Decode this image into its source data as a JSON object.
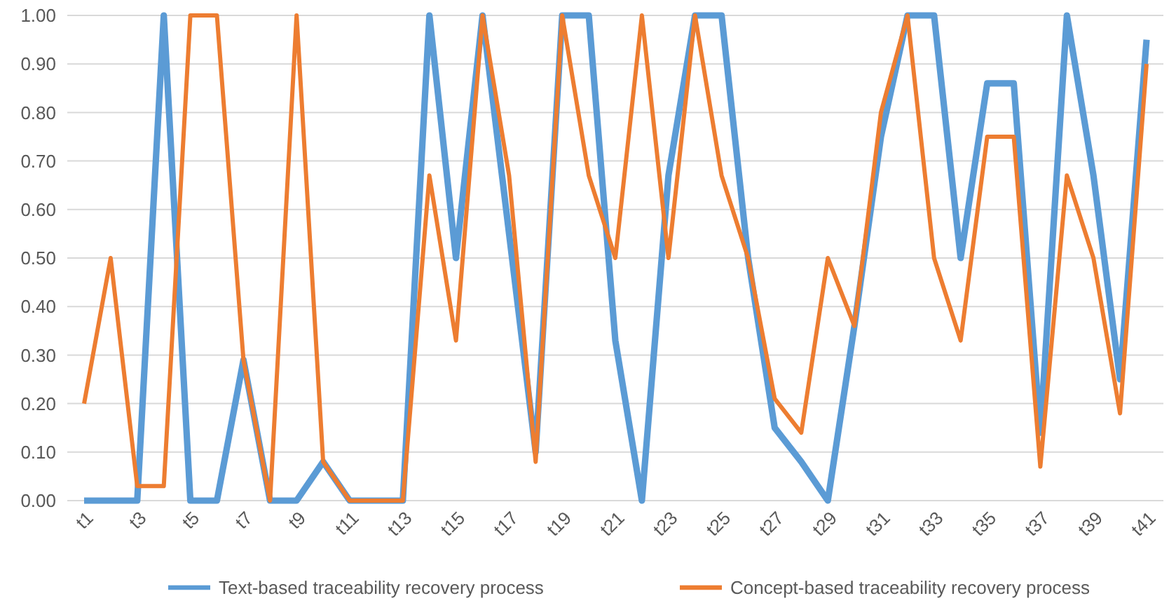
{
  "chart_data": {
    "type": "line",
    "categories": [
      "t1",
      null,
      "t3",
      null,
      "t5",
      null,
      "t7",
      null,
      "t9",
      null,
      "t11",
      null,
      "t13",
      null,
      "t15",
      null,
      "t17",
      null,
      "t19",
      null,
      "t21",
      null,
      "t23",
      null,
      "t25",
      null,
      "t27",
      null,
      "t29",
      null,
      "t31",
      null,
      "t33",
      null,
      "t35",
      null,
      "t37",
      null,
      "t39",
      null,
      "t41"
    ],
    "series": [
      {
        "name": "Text-based traceability recovery process",
        "color": "#5b9bd5",
        "values": [
          0,
          0,
          0,
          1,
          0,
          0,
          0.29,
          0,
          0,
          0.08,
          0,
          0,
          0,
          1,
          0.5,
          1,
          0.55,
          0.1,
          1,
          1,
          0.33,
          0,
          0.67,
          1,
          1,
          0.5,
          0.15,
          0.08,
          0,
          0.36,
          0.75,
          1,
          1,
          0.5,
          0.86,
          0.86,
          0.14,
          1,
          0.67,
          0.25,
          0.95
        ]
      },
      {
        "name": "Concept-based traceability recovery process",
        "color": "#ed7d31",
        "values": [
          0.2,
          0.5,
          0.03,
          0.03,
          1,
          1,
          0.29,
          0,
          1,
          0.08,
          0,
          0,
          0,
          0.67,
          0.33,
          1,
          0.67,
          0.08,
          1,
          0.67,
          0.5,
          1,
          0.5,
          1,
          0.67,
          0.5,
          0.21,
          0.14,
          0.5,
          0.36,
          0.8,
          1,
          0.5,
          0.33,
          0.75,
          0.75,
          0.07,
          0.67,
          0.5,
          0.18,
          0.9
        ]
      }
    ],
    "ylim": [
      0,
      1
    ],
    "yticks": [
      {
        "value": 0,
        "label": "0.00"
      },
      {
        "value": 0.1,
        "label": "0.10"
      },
      {
        "value": 0.2,
        "label": "0.20"
      },
      {
        "value": 0.3,
        "label": "0.30"
      },
      {
        "value": 0.4,
        "label": "0.40"
      },
      {
        "value": 0.5,
        "label": "0.50"
      },
      {
        "value": 0.6,
        "label": "0.60"
      },
      {
        "value": 0.7,
        "label": "0.70"
      },
      {
        "value": 0.8,
        "label": "0.80"
      },
      {
        "value": 0.9,
        "label": "0.90"
      },
      {
        "value": 1,
        "label": "1.00"
      }
    ],
    "grid": "y",
    "legend": "bottom",
    "marker": "none",
    "line_style": "solid"
  }
}
